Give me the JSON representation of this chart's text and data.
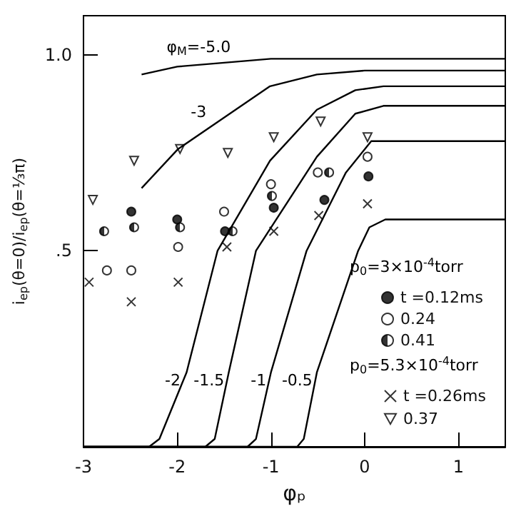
{
  "chart_data": {
    "type": "scatter",
    "xlabel": "φₚ",
    "ylabel": "i$_{ep}$(θ=0)/i$_{ep}$(θ=⅓π)",
    "xlim": [
      -3,
      1.5
    ],
    "xticks": [
      -3,
      -2,
      -1,
      0,
      1
    ],
    "ylim": [
      0,
      1.1
    ],
    "yticks": [
      {
        "value": 1,
        "label": "1.0"
      },
      {
        "value": 0.5,
        "label": ".5"
      }
    ],
    "legend": "bottom right",
    "series": [
      {
        "type": "line",
        "name": "φ$_{M}$=-5.0",
        "color": "#000000",
        "x": [
          -2.38,
          -2.0,
          -1.5,
          -1.0,
          -0.5,
          0.0,
          0.5,
          1.0,
          1.5
        ],
        "values": [
          0.95,
          0.97,
          0.98,
          0.99,
          0.99,
          0.99,
          0.99,
          0.99,
          0.99
        ]
      },
      {
        "type": "line",
        "name": "-3",
        "color": "#000000",
        "x": [
          -2.38,
          -1.99,
          -1.5,
          -1.01,
          -0.51,
          0.0,
          0.5,
          1.5
        ],
        "values": [
          0.66,
          0.76,
          0.84,
          0.92,
          0.95,
          0.96,
          0.96,
          0.96
        ]
      },
      {
        "type": "line",
        "name": "-2",
        "color": "#000000",
        "x": [
          -3.0,
          -2.3,
          -2.19,
          -1.9,
          -1.57,
          -1.01,
          -0.51,
          -0.1,
          0.2,
          1.5
        ],
        "values": [
          0.0,
          0.0,
          0.02,
          0.19,
          0.5,
          0.73,
          0.86,
          0.91,
          0.92,
          0.92
        ]
      },
      {
        "type": "line",
        "name": "-1.5",
        "color": "#000000",
        "x": [
          -3.0,
          -1.7,
          -1.6,
          -1.45,
          -1.16,
          -0.51,
          -0.1,
          0.2,
          1.5
        ],
        "values": [
          0.0,
          0.0,
          0.02,
          0.19,
          0.5,
          0.74,
          0.85,
          0.87,
          0.87
        ]
      },
      {
        "type": "line",
        "name": "-1",
        "color": "#000000",
        "x": [
          -3.0,
          -1.25,
          -1.16,
          -1.0,
          -0.62,
          -0.2,
          0.07,
          1.5
        ],
        "values": [
          0.0,
          0.0,
          0.02,
          0.19,
          0.5,
          0.7,
          0.78,
          0.78
        ]
      },
      {
        "type": "line",
        "name": "-0.5",
        "color": "#000000",
        "x": [
          -3.0,
          -0.72,
          -0.65,
          -0.51,
          -0.07,
          0.05,
          0.22,
          1.5
        ],
        "values": [
          0.0,
          0.0,
          0.02,
          0.19,
          0.5,
          0.56,
          0.58,
          0.58
        ]
      },
      {
        "name": "t =0.12ms",
        "marker": "circle",
        "color": "#000000",
        "x": [
          -2.49,
          -2.0,
          -1.49,
          -0.97,
          -0.43,
          0.04
        ],
        "values": [
          0.6,
          0.58,
          0.55,
          0.61,
          0.63,
          0.69
        ]
      },
      {
        "name": "0.24",
        "marker": "circle",
        "color": "#000000",
        "x": [
          -2.75,
          -2.49,
          -1.99,
          -1.5,
          -1.0,
          -0.5,
          0.03
        ],
        "values": [
          0.45,
          0.45,
          0.51,
          0.6,
          0.67,
          0.7,
          0.74
        ]
      },
      {
        "name": "0.41",
        "marker": "circle",
        "color": "#000000",
        "x": [
          -2.78,
          -2.46,
          -1.97,
          -1.41,
          -0.99,
          -0.38
        ],
        "values": [
          0.55,
          0.56,
          0.56,
          0.55,
          0.64,
          0.7
        ]
      },
      {
        "name": "t =0.26ms",
        "marker": "cross",
        "color": "#000000",
        "x": [
          -2.94,
          -2.49,
          -1.99,
          -1.47,
          -0.97,
          -0.49,
          0.03
        ],
        "values": [
          0.42,
          0.37,
          0.42,
          0.51,
          0.55,
          0.59,
          0.62
        ]
      },
      {
        "name": "0.37",
        "marker": "triangle",
        "color": "#000000",
        "x": [
          -2.9,
          -2.46,
          -1.97,
          -1.46,
          -0.97,
          -0.47,
          0.03
        ],
        "values": [
          0.63,
          0.73,
          0.76,
          0.75,
          0.79,
          0.83,
          0.79
        ]
      }
    ],
    "annotations": [
      "p$_{0}$=3×10$^{-4}$torr",
      "p$_{0}$=5.3×10$^{-4}$torr"
    ]
  }
}
